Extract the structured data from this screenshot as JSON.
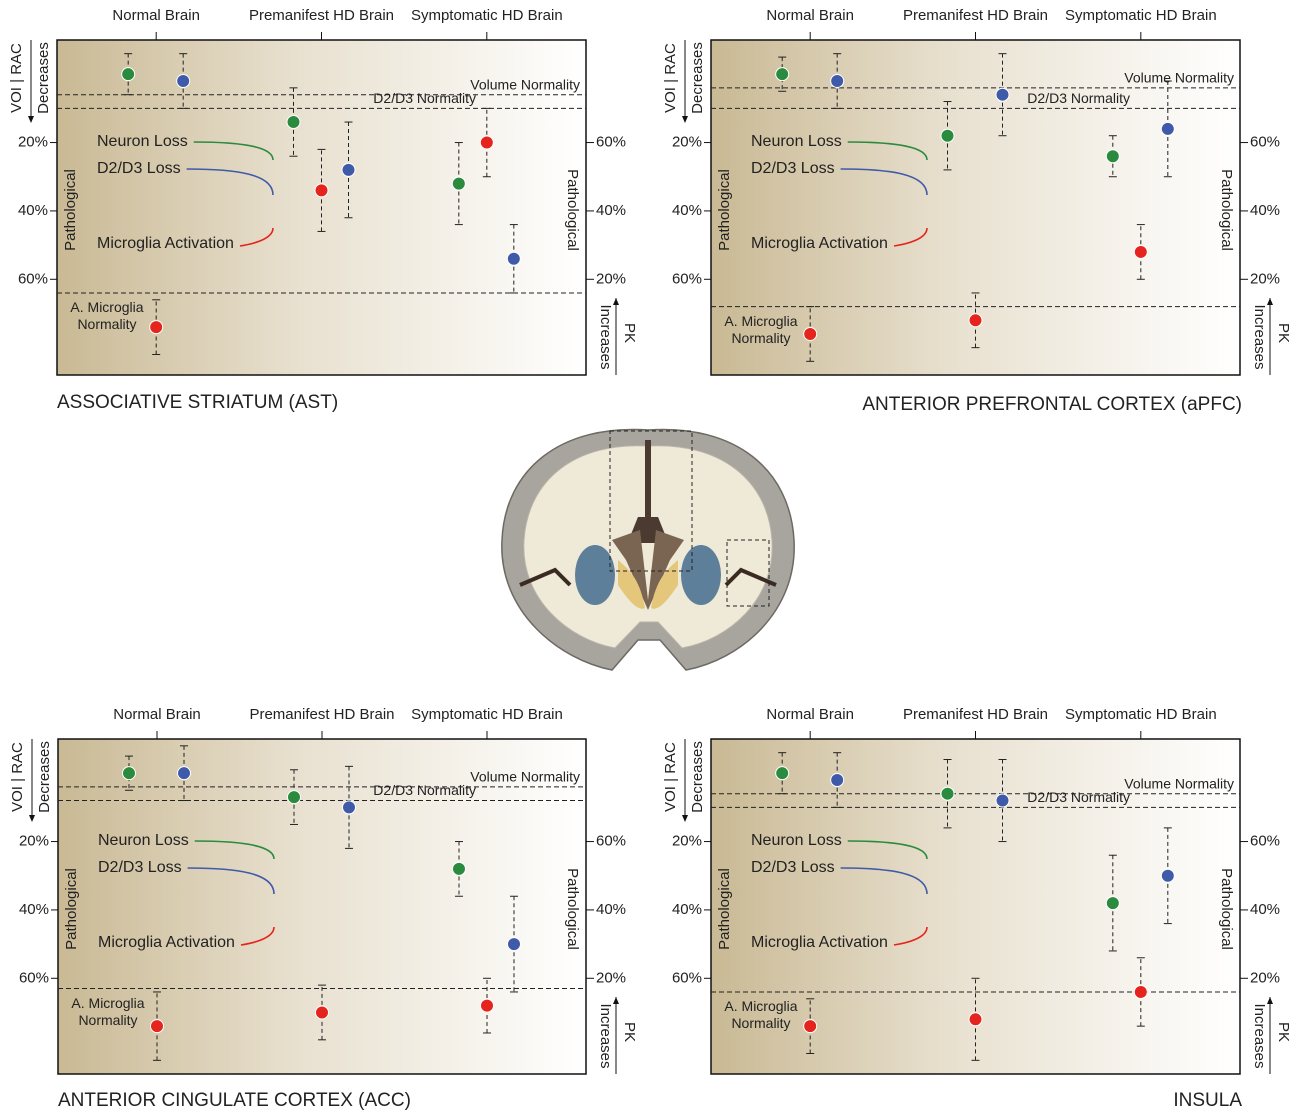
{
  "chart_data": [
    {
      "type": "errorbar",
      "title": "ASSOCIATIVE STRIATUM (AST)",
      "categories": [
        "Normal Brain",
        "Premanifest HD Brain",
        "Symptomatic HD Brain"
      ],
      "y_label": "VOI | RAC",
      "y_direction": "Decreases",
      "y_region": "Pathological",
      "y2_label": "PK",
      "y2_direction": "Increases",
      "y2_region": "Pathological",
      "ylim": [
        88,
        -10
      ],
      "yticks": [
        {
          "value": 20,
          "label": "20%"
        },
        {
          "value": 40,
          "label": "40%"
        },
        {
          "value": 60,
          "label": "60%"
        }
      ],
      "y2lim": [
        -8,
        90
      ],
      "y2ticks": [
        {
          "value": 60,
          "label": "60%"
        },
        {
          "value": 40,
          "label": "40%"
        },
        {
          "value": 20,
          "label": "20%"
        }
      ],
      "series": [
        {
          "name": "Neuron Loss",
          "color": "#2a8a3e",
          "values": [
            0,
            14,
            32
          ],
          "errors": [
            6,
            10,
            12
          ]
        },
        {
          "name": "D2/D3 Loss",
          "color": "#3f5aa8",
          "values": [
            2,
            28,
            54
          ],
          "errors": [
            8,
            14,
            10
          ]
        },
        {
          "name": "Microglia Activation",
          "color": "#e4241d",
          "axis": "y2",
          "values": [
            6,
            46,
            60
          ],
          "errors": [
            8,
            12,
            10
          ]
        }
      ],
      "reference_lines": [
        {
          "label": "Volume Normality",
          "value": 6
        },
        {
          "label": "D2/D3 Normality",
          "value": 10
        },
        {
          "label": "A. Microglia Normality",
          "value": 16,
          "axis": "y2"
        }
      ]
    },
    {
      "type": "errorbar",
      "title": "ANTERIOR PREFRONTAL CORTEX (aPFC)",
      "categories": [
        "Normal Brain",
        "Premanifest HD Brain",
        "Symptomatic HD Brain"
      ],
      "y_label": "VOI | RAC",
      "y_direction": "Decreases",
      "y_region": "Pathological",
      "y2_label": "PK",
      "y2_direction": "Increases",
      "y2_region": "Pathological",
      "ylim": [
        88,
        -10
      ],
      "yticks": [
        {
          "value": 20,
          "label": "20%"
        },
        {
          "value": 40,
          "label": "40%"
        },
        {
          "value": 60,
          "label": "60%"
        }
      ],
      "y2lim": [
        -8,
        90
      ],
      "y2ticks": [
        {
          "value": 60,
          "label": "60%"
        },
        {
          "value": 40,
          "label": "40%"
        },
        {
          "value": 20,
          "label": "20%"
        }
      ],
      "series": [
        {
          "name": "Neuron Loss",
          "color": "#2a8a3e",
          "values": [
            0,
            18,
            24
          ],
          "errors": [
            5,
            10,
            6
          ]
        },
        {
          "name": "D2/D3 Loss",
          "color": "#3f5aa8",
          "values": [
            2,
            6,
            16
          ],
          "errors": [
            8,
            12,
            14
          ]
        },
        {
          "name": "Microglia Activation",
          "color": "#e4241d",
          "axis": "y2",
          "values": [
            4,
            8,
            28
          ],
          "errors": [
            8,
            8,
            8
          ]
        }
      ],
      "reference_lines": [
        {
          "label": "Volume Normality",
          "value": 4
        },
        {
          "label": "D2/D3 Normality",
          "value": 10
        },
        {
          "label": "A. Microglia Normality",
          "value": 12,
          "axis": "y2"
        }
      ]
    },
    {
      "type": "errorbar",
      "title": "ANTERIOR CINGULATE CORTEX (ACC)",
      "categories": [
        "Normal Brain",
        "Premanifest HD Brain",
        "Symptomatic HD Brain"
      ],
      "y_label": "VOI | RAC",
      "y_direction": "Decreases",
      "y_region": "Pathological",
      "y2_label": "PK",
      "y2_direction": "Increases",
      "y2_region": "Pathological",
      "ylim": [
        88,
        -10
      ],
      "yticks": [
        {
          "value": 20,
          "label": "20%"
        },
        {
          "value": 40,
          "label": "40%"
        },
        {
          "value": 60,
          "label": "60%"
        }
      ],
      "y2lim": [
        -8,
        90
      ],
      "y2ticks": [
        {
          "value": 60,
          "label": "60%"
        },
        {
          "value": 40,
          "label": "40%"
        },
        {
          "value": 20,
          "label": "20%"
        }
      ],
      "series": [
        {
          "name": "Neuron Loss",
          "color": "#2a8a3e",
          "values": [
            0,
            7,
            28
          ],
          "errors": [
            5,
            8,
            8
          ]
        },
        {
          "name": "D2/D3 Loss",
          "color": "#3f5aa8",
          "values": [
            0,
            10,
            50
          ],
          "errors": [
            8,
            12,
            14
          ]
        },
        {
          "name": "Microglia Activation",
          "color": "#e4241d",
          "axis": "y2",
          "values": [
            6,
            10,
            12
          ],
          "errors": [
            10,
            8,
            8
          ]
        }
      ],
      "reference_lines": [
        {
          "label": "Volume Normality",
          "value": 4
        },
        {
          "label": "D2/D3 Normality",
          "value": 8
        },
        {
          "label": "A. Microglia Normality",
          "value": 17,
          "axis": "y2"
        }
      ]
    },
    {
      "type": "errorbar",
      "title": "INSULA",
      "categories": [
        "Normal Brain",
        "Premanifest HD Brain",
        "Symptomatic HD Brain"
      ],
      "y_label": "VOI | RAC",
      "y_direction": "Decreases",
      "y_region": "Pathological",
      "y2_label": "PK",
      "y2_direction": "Increases",
      "y2_region": "Pathological",
      "ylim": [
        88,
        -10
      ],
      "yticks": [
        {
          "value": 20,
          "label": "20%"
        },
        {
          "value": 40,
          "label": "40%"
        },
        {
          "value": 60,
          "label": "60%"
        }
      ],
      "y2lim": [
        -8,
        90
      ],
      "y2ticks": [
        {
          "value": 60,
          "label": "60%"
        },
        {
          "value": 40,
          "label": "40%"
        },
        {
          "value": 20,
          "label": "20%"
        }
      ],
      "series": [
        {
          "name": "Neuron Loss",
          "color": "#2a8a3e",
          "values": [
            0,
            6,
            38
          ],
          "errors": [
            6,
            10,
            14
          ]
        },
        {
          "name": "D2/D3 Loss",
          "color": "#3f5aa8",
          "values": [
            2,
            8,
            30
          ],
          "errors": [
            8,
            12,
            14
          ]
        },
        {
          "name": "Microglia Activation",
          "color": "#e4241d",
          "axis": "y2",
          "values": [
            6,
            8,
            16
          ],
          "errors": [
            8,
            12,
            10
          ]
        }
      ],
      "reference_lines": [
        {
          "label": "Volume Normality",
          "value": 6
        },
        {
          "label": "D2/D3 Normality",
          "value": 10
        },
        {
          "label": "A. Microglia Normality",
          "value": 16,
          "axis": "y2"
        }
      ]
    }
  ]
}
